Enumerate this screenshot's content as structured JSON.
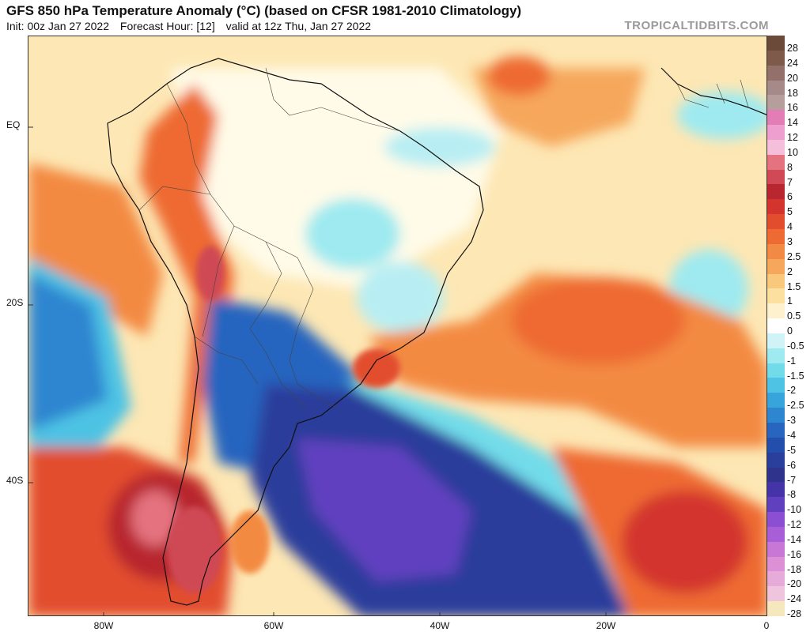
{
  "header": {
    "title": "GFS 850 hPa Temperature Anomaly (°C) (based on CFSR 1981-2010 Climatology)",
    "init": "Init: 00z Jan 27 2022",
    "forecast_hour": "Forecast Hour: [12]",
    "valid": "valid at 12z Thu, Jan 27 2022",
    "brand": "TROPICALTIDBITS.COM"
  },
  "axes": {
    "lat_labels": [
      "EQ",
      "20S",
      "40S"
    ],
    "lon_labels": [
      "80W",
      "60W",
      "40W",
      "20W",
      "0"
    ]
  },
  "colorbar": {
    "labels": [
      "28",
      "24",
      "20",
      "18",
      "16",
      "14",
      "12",
      "10",
      "8",
      "7",
      "6",
      "5",
      "4",
      "3",
      "2.5",
      "2",
      "1.5",
      "1",
      "0.5",
      "0",
      "-0.5",
      "-1",
      "-1.5",
      "-2",
      "-2.5",
      "-3",
      "-4",
      "-5",
      "-6",
      "-7",
      "-8",
      "-10",
      "-12",
      "-14",
      "-16",
      "-18",
      "-20",
      "-24",
      "-28"
    ],
    "colors": [
      "#6b4a3a",
      "#7d5a4a",
      "#93716a",
      "#a68989",
      "#b59e9c",
      "#e27eb5",
      "#ee9fcf",
      "#f5bfdc",
      "#e4737f",
      "#cf4a55",
      "#b8262f",
      "#d3342d",
      "#e24e2d",
      "#ee6a33",
      "#f38a43",
      "#f6a75b",
      "#f9c87a",
      "#fbe09f",
      "#fdf2cd",
      "#ffffff",
      "#cff3f7",
      "#9eeaf0",
      "#72dbe9",
      "#4ec3e4",
      "#37a5dc",
      "#2f86d0",
      "#2765bf",
      "#244eac",
      "#2a3e9b",
      "#30338c",
      "#4434a7",
      "#6040bf",
      "#8a4fd3",
      "#a85ed7",
      "#c977d7",
      "#dd90d6",
      "#e7abd9",
      "#efc4dd",
      "#f6e8bd"
    ]
  },
  "regions": [
    {
      "name": "warm-anomaly-patagonia",
      "color": "#c43138"
    },
    {
      "name": "cold-anomaly-south-atlantic",
      "color": "#3a3fa7"
    },
    {
      "name": "warm-anomaly-central-atlantic",
      "color": "#ee6a33"
    },
    {
      "name": "cool-anomaly-brazil",
      "color": "#72dbe9"
    }
  ]
}
